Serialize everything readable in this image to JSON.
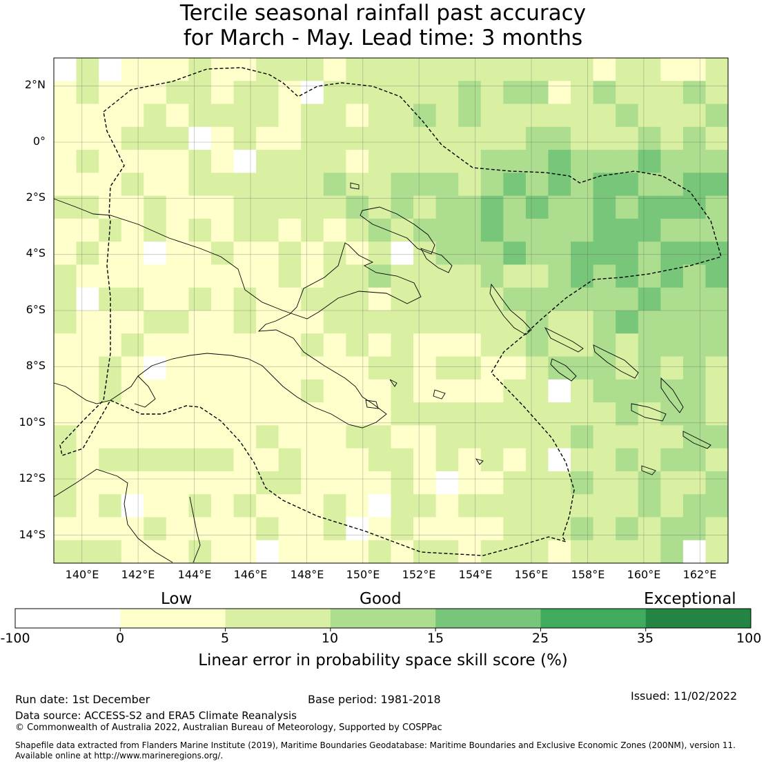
{
  "title": {
    "line1": "Tercile seasonal rainfall past accuracy",
    "line2": "for March - May. Lead time: 3 months"
  },
  "map": {
    "lat_labels": [
      "2°N",
      "0°",
      "2°S",
      "4°S",
      "6°S",
      "8°S",
      "10°S",
      "12°S",
      "14°S"
    ],
    "lon_labels": [
      "140°E",
      "142°E",
      "144°E",
      "146°E",
      "148°E",
      "150°E",
      "152°E",
      "154°E",
      "156°E",
      "158°E",
      "160°E",
      "162°E"
    ],
    "extent": {
      "lon": [
        139.0,
        163.0
      ],
      "lat": [
        -15.0,
        3.0
      ]
    }
  },
  "legend": {
    "categories": [
      "Low",
      "Good",
      "Exceptional"
    ],
    "ticks": [
      "-100",
      "0",
      "5",
      "10",
      "15",
      "25",
      "35",
      "100"
    ],
    "colors": [
      "#ffffff",
      "#ffffcc",
      "#d9f0a3",
      "#addd8e",
      "#78c679",
      "#41ab5d",
      "#238443"
    ],
    "label": "Linear error in probability space skill score (%)"
  },
  "footer": {
    "run_date": "Run date: 1st December",
    "base_period": "Base period: 1981-2018",
    "issued": "Issued: 11/02/2022",
    "data_source": "Data source: ACCESS-S2 and ERA5 Climate Reanalysis",
    "copyright": "© Commonwealth of Australia 2022, Australian Bureau of Meteorology, Supported by COSPPac",
    "shapefile_1": "Shapefile data extracted from Flanders Marine Institute (2019), Maritime Boundaries Geodatabase: Maritime Boundaries and Exclusive Economic Zones (200NM), version 11.",
    "shapefile_2": "Available online at http://www.marineregions.org/."
  }
}
